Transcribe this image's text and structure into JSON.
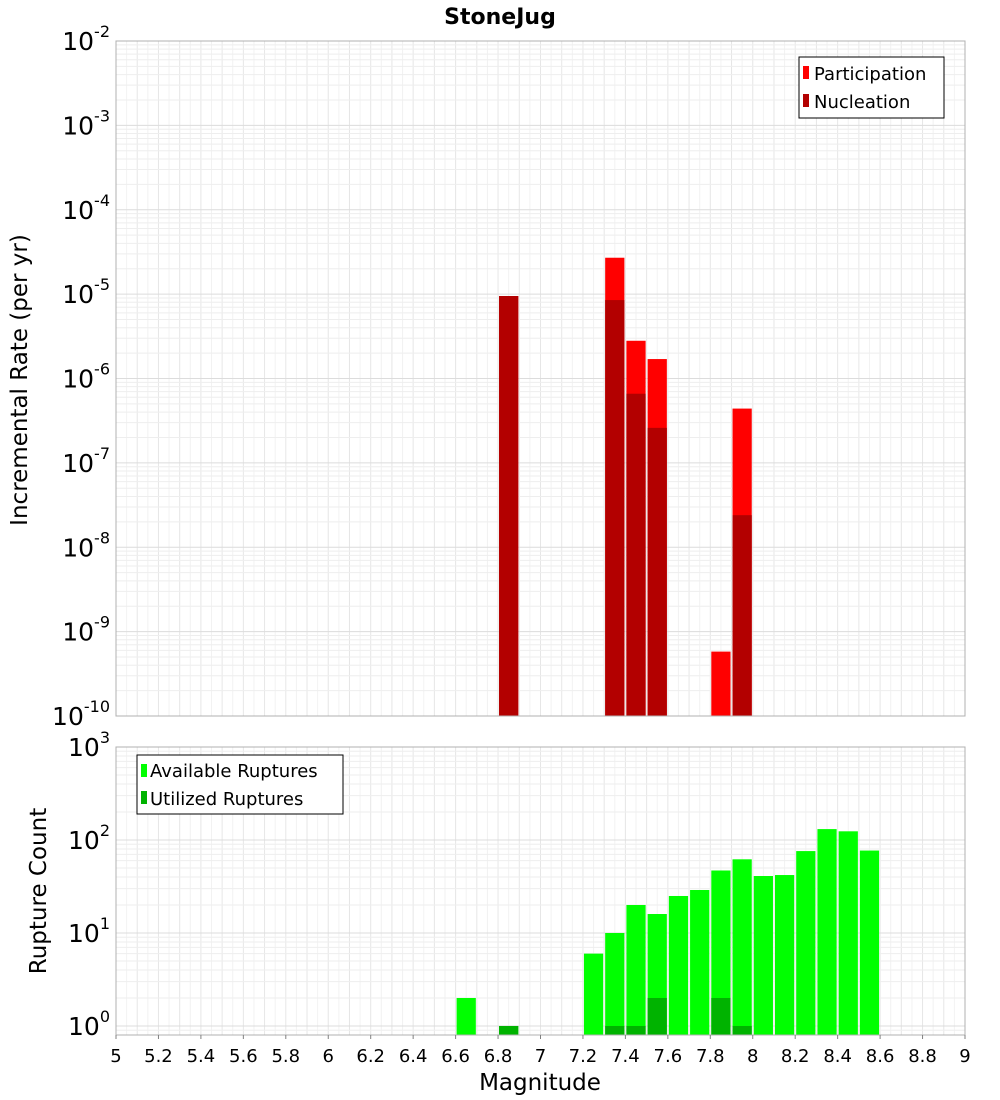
{
  "chart_data": [
    {
      "type": "bar",
      "title": "StoneJug",
      "ylabel": "Incremental Rate (per yr)",
      "xlabel": "",
      "xlim": [
        5,
        9
      ],
      "ylim": [
        1e-10,
        0.01
      ],
      "yscale": "log",
      "bin_width": 0.1,
      "legend_position": "top-right",
      "series": [
        {
          "name": "Participation",
          "color": "#ff0000",
          "points": [
            [
              6.85,
              9.5e-06
            ],
            [
              7.35,
              2.7e-05
            ],
            [
              7.45,
              2.8e-06
            ],
            [
              7.55,
              1.7e-06
            ],
            [
              7.85,
              5.8e-10
            ],
            [
              7.95,
              4.4e-07
            ]
          ]
        },
        {
          "name": "Nucleation",
          "color": "#b30000",
          "points": [
            [
              6.85,
              9.5e-06
            ],
            [
              7.35,
              8.5e-06
            ],
            [
              7.45,
              6.6e-07
            ],
            [
              7.55,
              2.6e-07
            ],
            [
              7.95,
              2.4e-08
            ]
          ]
        }
      ],
      "yticks": [
        {
          "base": "10",
          "exp": "-2"
        },
        {
          "base": "10",
          "exp": "-3"
        },
        {
          "base": "10",
          "exp": "-4"
        },
        {
          "base": "10",
          "exp": "-5"
        },
        {
          "base": "10",
          "exp": "-6"
        },
        {
          "base": "10",
          "exp": "-7"
        },
        {
          "base": "10",
          "exp": "-8"
        },
        {
          "base": "10",
          "exp": "-9"
        },
        {
          "base": "10",
          "exp": "-10"
        }
      ]
    },
    {
      "type": "bar",
      "title": "",
      "ylabel": "Rupture Count",
      "xlabel": "Magnitude",
      "xlim": [
        5,
        9
      ],
      "ylim": [
        0.8,
        1000
      ],
      "yscale": "log",
      "bin_width": 0.1,
      "legend_position": "top-left",
      "series": [
        {
          "name": "Available Ruptures",
          "color": "#00ff00",
          "points": [
            [
              6.65,
              2
            ],
            [
              6.85,
              1
            ],
            [
              7.25,
              6
            ],
            [
              7.35,
              10
            ],
            [
              7.45,
              20
            ],
            [
              7.55,
              16
            ],
            [
              7.65,
              25
            ],
            [
              7.75,
              29
            ],
            [
              7.85,
              47
            ],
            [
              7.95,
              62
            ],
            [
              8.05,
              41
            ],
            [
              8.15,
              42
            ],
            [
              8.25,
              76
            ],
            [
              8.35,
              131
            ],
            [
              8.45,
              124
            ],
            [
              8.55,
              77
            ]
          ]
        },
        {
          "name": "Utilized Ruptures",
          "color": "#00b300",
          "points": [
            [
              6.85,
              1
            ],
            [
              7.35,
              1
            ],
            [
              7.45,
              1
            ],
            [
              7.55,
              2
            ],
            [
              7.85,
              2
            ],
            [
              7.95,
              1
            ]
          ]
        }
      ],
      "yticks": [
        {
          "base": "10",
          "exp": "3"
        },
        {
          "base": "10",
          "exp": "2"
        },
        {
          "base": "10",
          "exp": "1"
        },
        {
          "base": "10",
          "exp": "0"
        }
      ],
      "xticks": [
        "5",
        "5.2",
        "5.4",
        "5.6",
        "5.8",
        "6",
        "6.2",
        "6.4",
        "6.6",
        "6.8",
        "7",
        "7.2",
        "7.4",
        "7.6",
        "7.8",
        "8",
        "8.2",
        "8.4",
        "8.6",
        "8.8",
        "9"
      ]
    }
  ]
}
